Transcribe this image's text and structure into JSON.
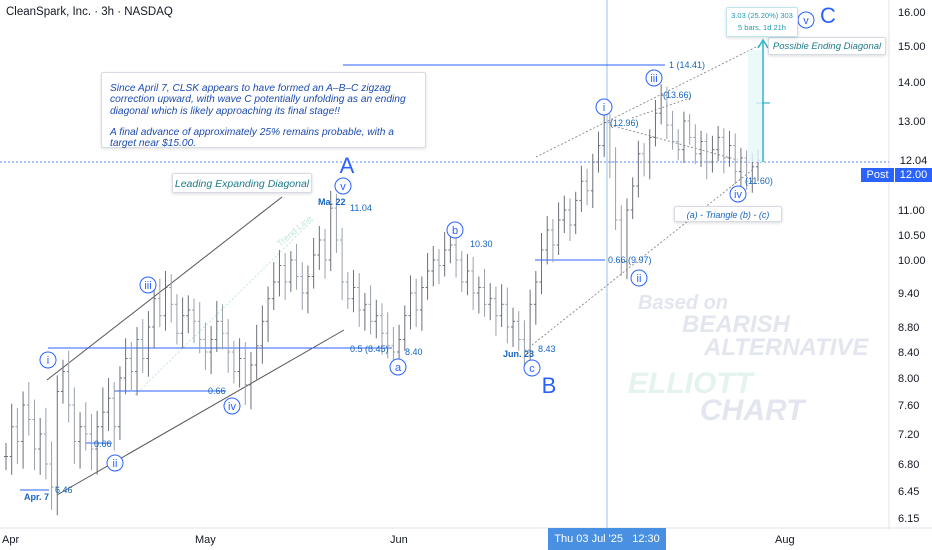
{
  "header": {
    "title": "CleanSpark, Inc. · 3h · NASDAQ"
  },
  "note": {
    "paragraph1": "Since April 7, CLSK appears to have formed an A–B–C zigzag correction upward, with wave C potentially unfolding as an ending diagonal which is likely approaching its final stage!!",
    "paragraph2": "A final advance of approximately 25% remains probable, with a target near $15.00."
  },
  "callouts": {
    "leading": "Leading Expanding Diagonal",
    "ending": "Possible Ending Diagonal",
    "triangle": "(a) - Triangle (b) - (c)",
    "measure_line1": "3.03 (25.20%) 303",
    "measure_line2": "5 bars, 1d 21h"
  },
  "price_scale": {
    "last_price": "12.04",
    "post_label": "Post",
    "post_price": "12.00",
    "crosshair_date": "Thu 03 Jul '25",
    "crosshair_time": "12:30"
  },
  "watermark": [
    "Based on",
    "BEARISH",
    "ALTERNATIVE",
    "ELLIOTT",
    "CHART"
  ],
  "colors": {
    "up": "#089981",
    "down": "#f23645",
    "bars": "#5d606b",
    "wave": "#2962ff",
    "label": "#1565c0",
    "watermark": "#e3e6ef"
  },
  "chart_data": {
    "type": "ohlc",
    "y_ticks": [
      "16.00",
      "15.00",
      "14.00",
      "13.00",
      "12.00",
      "11.00",
      "10.50",
      "10.00",
      "9.40",
      "8.80",
      "8.40",
      "8.00",
      "7.60",
      "7.20",
      "6.80",
      "6.45",
      "6.15"
    ],
    "x_ticks": [
      "Apr",
      "May",
      "Jun",
      "Aug"
    ],
    "ylim": [
      6.0,
      16.5
    ],
    "waves": [
      {
        "label": "Apr. 7",
        "date": "Apr 7",
        "price": 6.46,
        "price_label": "6.46"
      },
      {
        "label": "i",
        "date": "Apr 9",
        "price": 8.1
      },
      {
        "label": "ii",
        "date": "Apr 21",
        "price": 6.9,
        "price_label": "0.66"
      },
      {
        "label": "iii",
        "date": "May 2",
        "price": 9.5
      },
      {
        "label": "iv",
        "date": "May 9",
        "price": 7.8,
        "price_label": "0.66"
      },
      {
        "label": "v",
        "date": "May 22",
        "price": 11.04,
        "price_label": "11.04",
        "date_label": "Ma. 22"
      },
      {
        "label": "A",
        "date": "May 22",
        "price": 11.04
      },
      {
        "label": "a",
        "date": "Jun 1",
        "price": 8.4,
        "price_label": "8.40",
        "fib": "0.5 (8.45)"
      },
      {
        "label": "b",
        "date": "Jun 11",
        "price": 10.3,
        "price_label": "10.30"
      },
      {
        "label": "c",
        "date": "Jun 23",
        "price": 8.43,
        "price_label": "8.43",
        "date_label": "Jun. 23"
      },
      {
        "label": "B",
        "date": "Jun 23",
        "price": 8.43
      },
      {
        "label": "i",
        "date": "Jul 2",
        "price": 12.96,
        "price_label": "(12.96)"
      },
      {
        "label": "ii",
        "date": "Jul 7",
        "price": 9.97,
        "fib": "0.66 (9.97)"
      },
      {
        "label": "iii",
        "date": "Jul 10",
        "price": 13.66,
        "price_label": "(13.66)",
        "fib": "1 (14.41)"
      },
      {
        "label": "iv",
        "date": "Jul 18",
        "price": 11.6,
        "price_label": "(11.60)"
      },
      {
        "label": "v",
        "date": "Jul 24",
        "price": 15.0
      },
      {
        "label": "C",
        "date": "Jul 24",
        "price": 15.0
      }
    ],
    "price_series": [
      6.9,
      7.3,
      7.1,
      7.6,
      7.4,
      7.0,
      7.2,
      6.8,
      6.5,
      7.8,
      8.1,
      7.6,
      7.1,
      7.3,
      7.2,
      7.0,
      7.3,
      7.5,
      7.7,
      7.3,
      8.0,
      8.3,
      8.1,
      8.6,
      8.3,
      8.8,
      9.3,
      9.0,
      9.5,
      9.2,
      8.7,
      9.0,
      9.1,
      8.9,
      8.6,
      8.4,
      8.6,
      8.9,
      8.7,
      8.4,
      8.1,
      8.3,
      7.9,
      8.2,
      8.5,
      8.9,
      9.3,
      9.6,
      9.9,
      9.6,
      10.0,
      9.7,
      9.4,
      9.7,
      10.1,
      10.4,
      10.0,
      11.04,
      10.4,
      9.6,
      9.3,
      9.5,
      9.1,
      9.2,
      8.9,
      9.0,
      8.7,
      8.5,
      8.4,
      8.6,
      9.0,
      9.4,
      9.1,
      9.5,
      9.8,
      10.0,
      9.9,
      10.2,
      10.3,
      10.0,
      9.6,
      9.8,
      9.4,
      9.5,
      9.2,
      9.3,
      9.0,
      9.2,
      8.8,
      8.9,
      8.6,
      8.43,
      9.2,
      9.6,
      10.2,
      10.6,
      10.3,
      10.8,
      11.0,
      10.7,
      11.2,
      11.6,
      11.4,
      12.0,
      12.4,
      12.96,
      12.0,
      10.8,
      9.97,
      11.0,
      11.5,
      12.2,
      12.0,
      12.6,
      13.2,
      13.66,
      12.9,
      12.5,
      12.3,
      13.0,
      12.6,
      12.2,
      12.5,
      12.0,
      12.3,
      12.6,
      12.1,
      12.4,
      11.8,
      12.1,
      11.6,
      11.9,
      12.04
    ]
  }
}
